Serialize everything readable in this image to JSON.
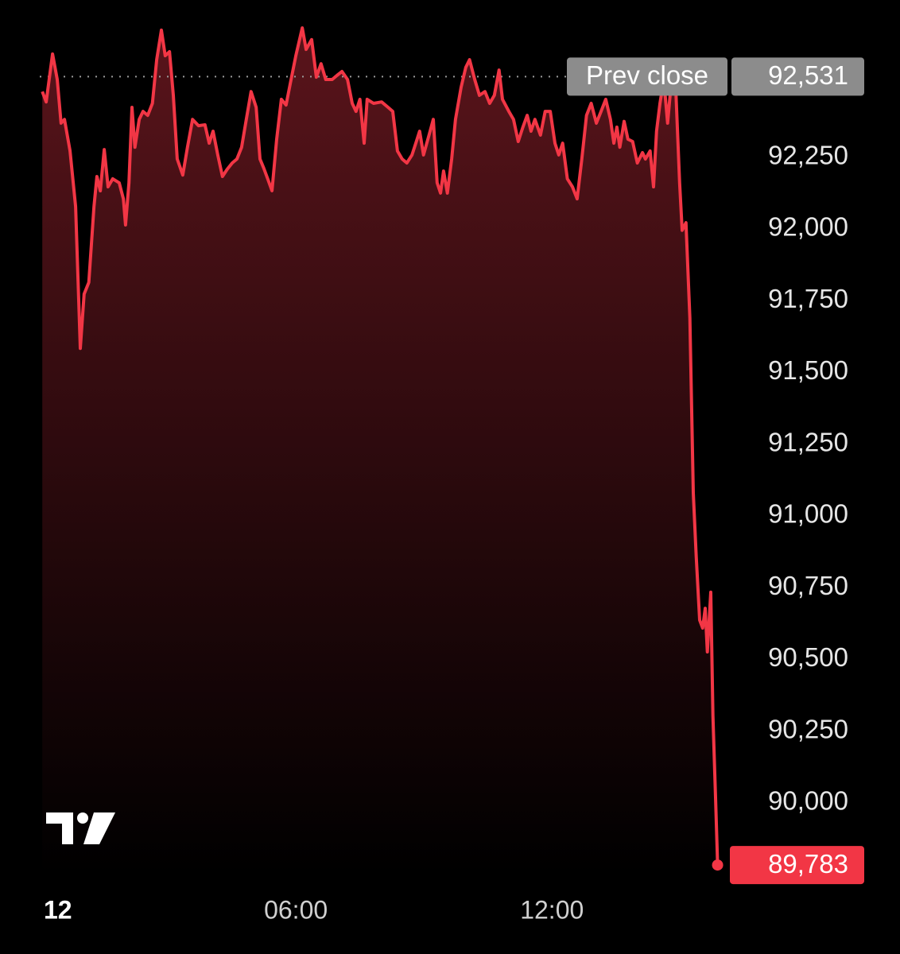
{
  "chart_data": {
    "type": "area_line",
    "color": "#f23645",
    "x": [
      0.06,
      0.15,
      0.3,
      0.41,
      0.5,
      0.58,
      0.71,
      0.84,
      0.95,
      1.04,
      1.15,
      1.27,
      1.34,
      1.42,
      1.51,
      1.6,
      1.71,
      1.86,
      1.96,
      2.01,
      2.09,
      2.16,
      2.23,
      2.33,
      2.42,
      2.53,
      2.64,
      2.74,
      2.85,
      2.94,
      3.04,
      3.13,
      3.22,
      3.35,
      3.46,
      3.58,
      3.72,
      3.87,
      3.97,
      4.06,
      4.17,
      4.28,
      4.39,
      4.51,
      4.62,
      4.73,
      4.84,
      4.95,
      5.07,
      5.16,
      5.25,
      5.34,
      5.44,
      5.55,
      5.66,
      5.77,
      5.87,
      6.0,
      6.15,
      6.24,
      6.37,
      6.48,
      6.59,
      6.7,
      6.85,
      6.96,
      7.08,
      7.21,
      7.32,
      7.41,
      7.5,
      7.6,
      7.67,
      7.82,
      8.01,
      8.16,
      8.27,
      8.38,
      8.49,
      8.6,
      8.72,
      8.81,
      8.9,
      8.99,
      9.12,
      9.22,
      9.31,
      9.39,
      9.46,
      9.55,
      9.65,
      9.74,
      9.87,
      9.98,
      10.07,
      10.19,
      10.3,
      10.43,
      10.54,
      10.65,
      10.76,
      10.84,
      10.99,
      11.1,
      11.21,
      11.32,
      11.42,
      11.51,
      11.6,
      11.73,
      11.84,
      11.96,
      12.07,
      12.16,
      12.25,
      12.36,
      12.48,
      12.59,
      12.7,
      12.81,
      12.92,
      13.04,
      13.15,
      13.26,
      13.37,
      13.45,
      13.52,
      13.59,
      13.69,
      13.78,
      13.89,
      14.0,
      14.12,
      14.19,
      14.3,
      14.38,
      14.45,
      14.53,
      14.62,
      14.71,
      14.8,
      14.9,
      14.99,
      15.05,
      15.14,
      15.23,
      15.31,
      15.38,
      15.46,
      15.53,
      15.59,
      15.64,
      15.72,
      15.77,
      15.83,
      15.88
    ],
    "values": [
      92479,
      92443,
      92610,
      92521,
      92369,
      92382,
      92272,
      92078,
      91584,
      91773,
      91814,
      92078,
      92183,
      92133,
      92277,
      92147,
      92175,
      92161,
      92105,
      92014,
      92161,
      92424,
      92285,
      92382,
      92410,
      92396,
      92438,
      92590,
      92693,
      92604,
      92618,
      92466,
      92244,
      92188,
      92285,
      92382,
      92360,
      92363,
      92299,
      92341,
      92258,
      92183,
      92208,
      92230,
      92244,
      92285,
      92382,
      92479,
      92424,
      92244,
      92211,
      92175,
      92133,
      92313,
      92452,
      92432,
      92507,
      92604,
      92701,
      92626,
      92660,
      92529,
      92576,
      92521,
      92521,
      92535,
      92549,
      92521,
      92438,
      92410,
      92452,
      92299,
      92452,
      92438,
      92443,
      92424,
      92410,
      92272,
      92244,
      92230,
      92258,
      92299,
      92341,
      92258,
      92327,
      92382,
      92161,
      92125,
      92202,
      92125,
      92244,
      92382,
      92493,
      92563,
      92590,
      92521,
      92466,
      92479,
      92438,
      92466,
      92554,
      92452,
      92410,
      92382,
      92305,
      92355,
      92396,
      92341,
      92382,
      92327,
      92410,
      92410,
      92299,
      92258,
      92299,
      92175,
      92147,
      92105,
      92244,
      92396,
      92438,
      92369,
      92410,
      92452,
      92382,
      92299,
      92355,
      92285,
      92375,
      92313,
      92305,
      92230,
      92266,
      92244,
      92272,
      92147,
      92341,
      92438,
      92521,
      92369,
      92521,
      92493,
      92161,
      91995,
      92022,
      91690,
      91080,
      90858,
      90637,
      90609,
      90678,
      90526,
      90734,
      90304,
      90027,
      89783
    ],
    "ylim": [
      89750,
      92715
    ],
    "yticks": [
      {
        "value": 90000,
        "label": "90,000"
      },
      {
        "value": 90250,
        "label": "90,250"
      },
      {
        "value": 90500,
        "label": "90,500"
      },
      {
        "value": 90750,
        "label": "90,750"
      },
      {
        "value": 91000,
        "label": "91,000"
      },
      {
        "value": 91250,
        "label": "91,250"
      },
      {
        "value": 91500,
        "label": "91,500"
      },
      {
        "value": 91750,
        "label": "91,750"
      },
      {
        "value": 92000,
        "label": "92,000"
      },
      {
        "value": 92250,
        "label": "92,250"
      }
    ],
    "xlim": [
      0,
      16
    ],
    "xticks": [
      {
        "value": 0,
        "label": "12"
      },
      {
        "value": 6,
        "label": "06:00"
      },
      {
        "value": 12,
        "label": "12:00"
      }
    ],
    "prev_close_label": "Prev close",
    "prev_close": {
      "value": 92531,
      "label": "92,531"
    },
    "last_price": {
      "value": 89783,
      "label": "89,783"
    }
  }
}
